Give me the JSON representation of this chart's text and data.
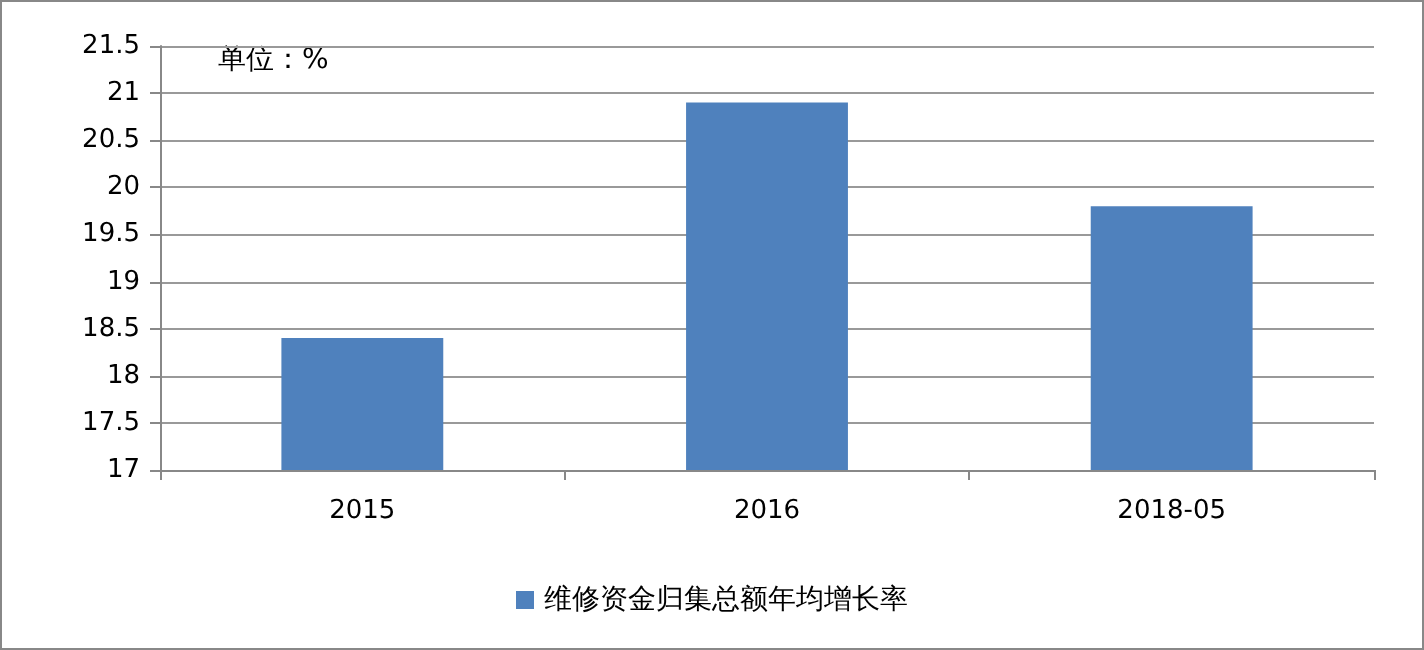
{
  "chart_data": {
    "type": "bar",
    "annotations": [
      "单位：%"
    ],
    "categories": [
      "2015",
      "2016",
      "2018-05"
    ],
    "series": [
      {
        "name": "维修资金归集总额年均增长率",
        "color": "#4f81bd",
        "values": [
          18.4,
          20.9,
          19.8
        ]
      }
    ],
    "ylim": [
      17,
      21.5
    ],
    "yticks": [
      17,
      17.5,
      18,
      18.5,
      19,
      19.5,
      20,
      20.5,
      21,
      21.5
    ],
    "grid": "y",
    "legend": "bottom"
  }
}
